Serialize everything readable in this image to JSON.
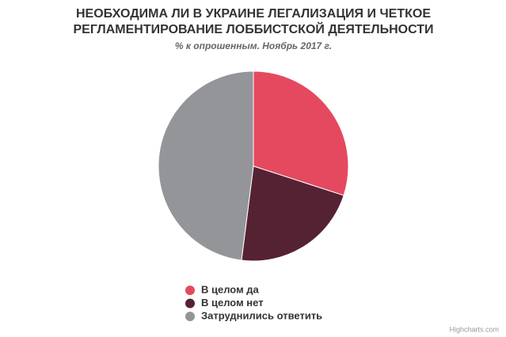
{
  "chart_data": {
    "type": "pie",
    "title": [
      "НЕОБХОДИМА ЛИ В УКРАИНЕ ЛЕГАЛИЗАЦИЯ И ЧЕТКОЕ",
      "РЕГЛАМЕНТИРОВАНИЕ ЛОББИСТСКОЙ ДЕЯТЕЛЬНОСТИ"
    ],
    "subtitle": "% к опрошенным. Ноябрь 2017 г.",
    "categories": [
      "В целом да",
      "В целом нет",
      "Затруднились ответить"
    ],
    "values": [
      30,
      22,
      48
    ],
    "colors": [
      "#e5495f",
      "#552233",
      "#939598"
    ],
    "credits": "Highcharts.com"
  }
}
